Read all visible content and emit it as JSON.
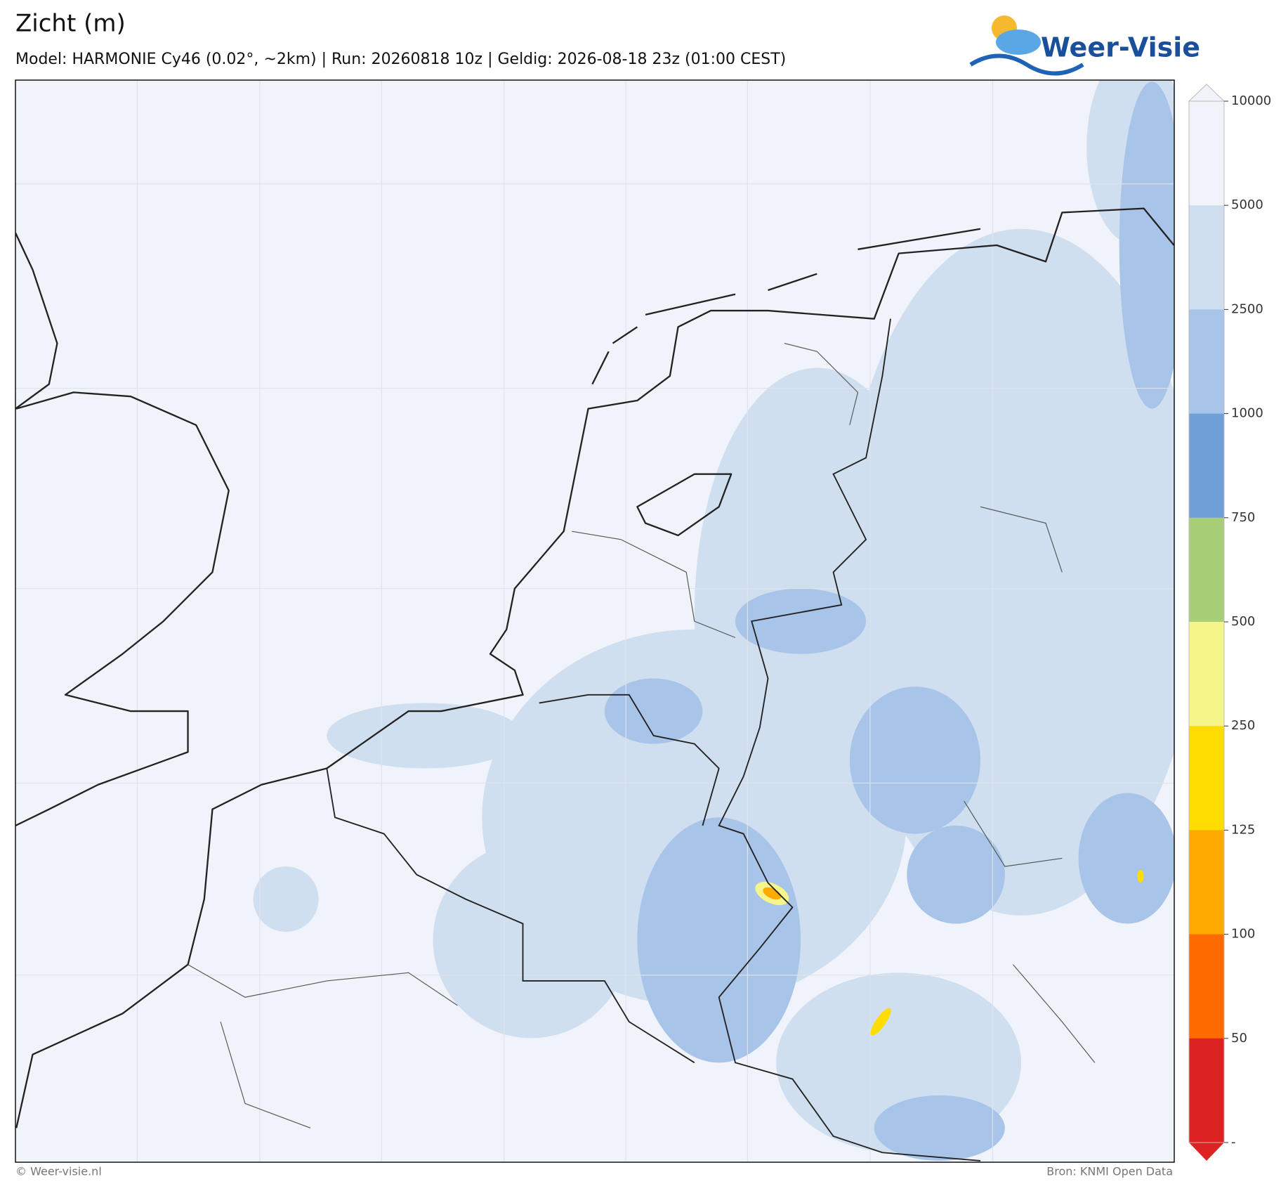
{
  "header": {
    "title": "Zicht (m)",
    "subtitle": "Model: HARMONIE Cy46 (0.02°, ~2km)  |  Run: 20260818 10z  |  Geldig: 2026-08-18 23z (01:00 CEST)",
    "logo": "Weer-Visie"
  },
  "colorbar": {
    "levels": [
      10000,
      5000,
      2500,
      1000,
      750,
      500,
      250,
      125,
      100,
      50
    ],
    "bottom_label": "-",
    "colors": [
      "#f0f4fa",
      "#d0dff0",
      "#a8c4e8",
      "#6fa0d8",
      "#a8cf78",
      "#f5f58a",
      "#ffdd00",
      "#ffaa00",
      "#ff6a00",
      "#dd2222"
    ]
  },
  "footer": {
    "left": "© Weer-visie.nl",
    "right": "Bron: KNMI Open Data"
  }
}
